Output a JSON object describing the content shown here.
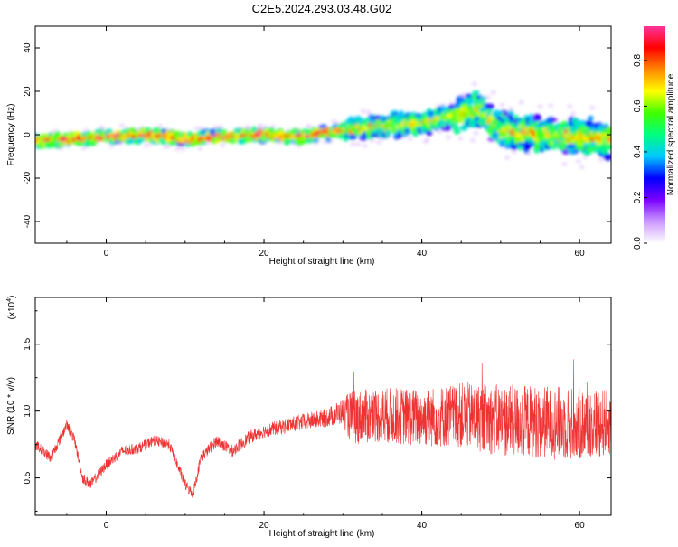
{
  "title": "C2E5.2024.293.03.48.G02",
  "chart_data": [
    {
      "type": "heatmap",
      "xlabel": "Height of straight line (km)",
      "ylabel": "Frequency (Hz)",
      "xlim": [
        -9,
        64
      ],
      "ylim": [
        -50,
        50
      ],
      "xticks": [
        0,
        20,
        40,
        60
      ],
      "yticks": [
        -40,
        -20,
        0,
        20,
        40
      ],
      "xtick_labels": [
        "0",
        "20",
        "40",
        "60"
      ],
      "ytick_labels": [
        "-40",
        "-20",
        "0",
        "20",
        "40"
      ],
      "ridge": {
        "x": [
          -9,
          -5,
          0,
          5,
          10,
          15,
          20,
          25,
          30,
          35,
          40,
          45,
          47,
          50,
          55,
          60,
          64
        ],
        "y": [
          -3,
          -2,
          -1,
          0,
          -2,
          -1,
          0,
          -1,
          2,
          4,
          5,
          9,
          12,
          2,
          0,
          -1,
          -2
        ]
      },
      "colorbar": {
        "label": "Normalized spectral amplitude",
        "range": [
          0,
          0.95
        ],
        "ticks": [
          0.0,
          0.2,
          0.4,
          0.6,
          0.8
        ],
        "tick_labels": [
          "0.0",
          "0.2",
          "0.4",
          "0.6",
          "0.8"
        ],
        "colormap": [
          "#ffffff",
          "#cc99ff",
          "#7a00ff",
          "#0000ff",
          "#00c8ff",
          "#00ff80",
          "#40ff00",
          "#ffff00",
          "#ff8800",
          "#ff0000",
          "#ff3399"
        ]
      }
    },
    {
      "type": "line",
      "xlabel": "Height of straight line (km)",
      "ylabel": "SNR (10 * v/v)",
      "scale_label": "(x10",
      "scale_exp": "4",
      "xlim": [
        -9,
        64
      ],
      "ylim": [
        0.22,
        1.85
      ],
      "xticks": [
        0,
        20,
        40,
        60
      ],
      "yticks": [
        0.5,
        1.0,
        1.5
      ],
      "xtick_labels": [
        "0",
        "20",
        "40",
        "60"
      ],
      "ytick_labels": [
        "0.5",
        "1.0",
        "1.5"
      ],
      "series": [
        {
          "color": "#ee3333",
          "trend": {
            "x": [
              -9,
              -7,
              -5,
              -4,
              -3,
              -2,
              0,
              2,
              4,
              6,
              8,
              10,
              11,
              12,
              14,
              16,
              18,
              20,
              22,
              25,
              28,
              30,
              31,
              35,
              40,
              45,
              50,
              55,
              60,
              64
            ],
            "y": [
              0.75,
              0.65,
              0.9,
              0.78,
              0.5,
              0.45,
              0.6,
              0.7,
              0.72,
              0.78,
              0.75,
              0.45,
              0.38,
              0.65,
              0.78,
              0.7,
              0.8,
              0.85,
              0.88,
              0.92,
              0.95,
              1.0,
              0.95,
              0.97,
              0.95,
              0.97,
              0.93,
              0.92,
              0.9,
              0.92
            ]
          },
          "noise": {
            "x": [
              -9,
              0,
              10,
              20,
              28,
              30,
              31,
              40,
              50,
              60,
              64
            ],
            "amp": [
              0.04,
              0.04,
              0.04,
              0.05,
              0.07,
              0.1,
              0.2,
              0.22,
              0.27,
              0.28,
              0.25
            ]
          }
        }
      ]
    }
  ]
}
